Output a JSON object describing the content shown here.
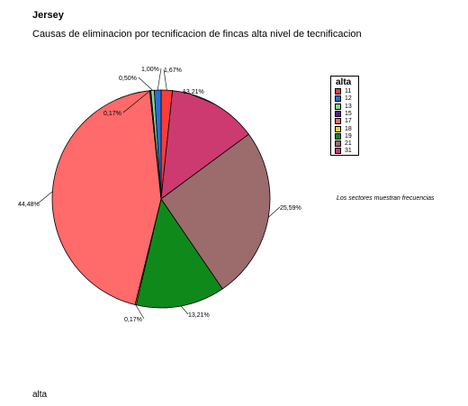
{
  "header": {
    "title": "Jersey",
    "subtitle": "Causas de eliminacion por tecnificacion de fincas alta nivel de  tecnificacion"
  },
  "legend": {
    "title": "alta",
    "items": [
      {
        "label": "11",
        "color": "#ff3a3a"
      },
      {
        "label": "12",
        "color": "#2a6fd6"
      },
      {
        "label": "13",
        "color": "#8cd68c"
      },
      {
        "label": "15",
        "color": "#5a1a8a"
      },
      {
        "label": "17",
        "color": "#ff6a6a"
      },
      {
        "label": "18",
        "color": "#ffd21f"
      },
      {
        "label": "19",
        "color": "#0f8a1a"
      },
      {
        "label": "21",
        "color": "#9c6b6b"
      },
      {
        "label": "31",
        "color": "#cc3a70"
      }
    ]
  },
  "note": "Los sectores muestran frecuencias",
  "footer": "alta",
  "chart_data": {
    "type": "pie",
    "title": "Jersey",
    "subtitle": "Causas de eliminacion por tecnificacion de fincas alta nivel de  tecnificacion",
    "legend_title": "alta",
    "legend_position": "right",
    "slices": [
      {
        "category": "11",
        "value": 1.67,
        "label": "1,67%",
        "color": "#ff3a3a"
      },
      {
        "category": "31",
        "value": 13.21,
        "label": "13,21%",
        "color": "#cc3a70"
      },
      {
        "category": "21",
        "value": 25.59,
        "label": "25,59%",
        "color": "#9c6b6b"
      },
      {
        "category": "19",
        "value": 13.21,
        "label": "13,21%",
        "color": "#0f8a1a"
      },
      {
        "category": "18",
        "value": 0.17,
        "label": "0,17%",
        "color": "#ffd21f"
      },
      {
        "category": "17",
        "value": 44.48,
        "label": "44,48%",
        "color": "#ff6a6a"
      },
      {
        "category": "15",
        "value": 0.17,
        "label": "0,17%",
        "color": "#5a1a8a"
      },
      {
        "category": "13",
        "value": 0.5,
        "label": "0,50%",
        "color": "#8cd68c"
      },
      {
        "category": "12",
        "value": 1.0,
        "label": "1,00%",
        "color": "#2a6fd6"
      }
    ]
  }
}
